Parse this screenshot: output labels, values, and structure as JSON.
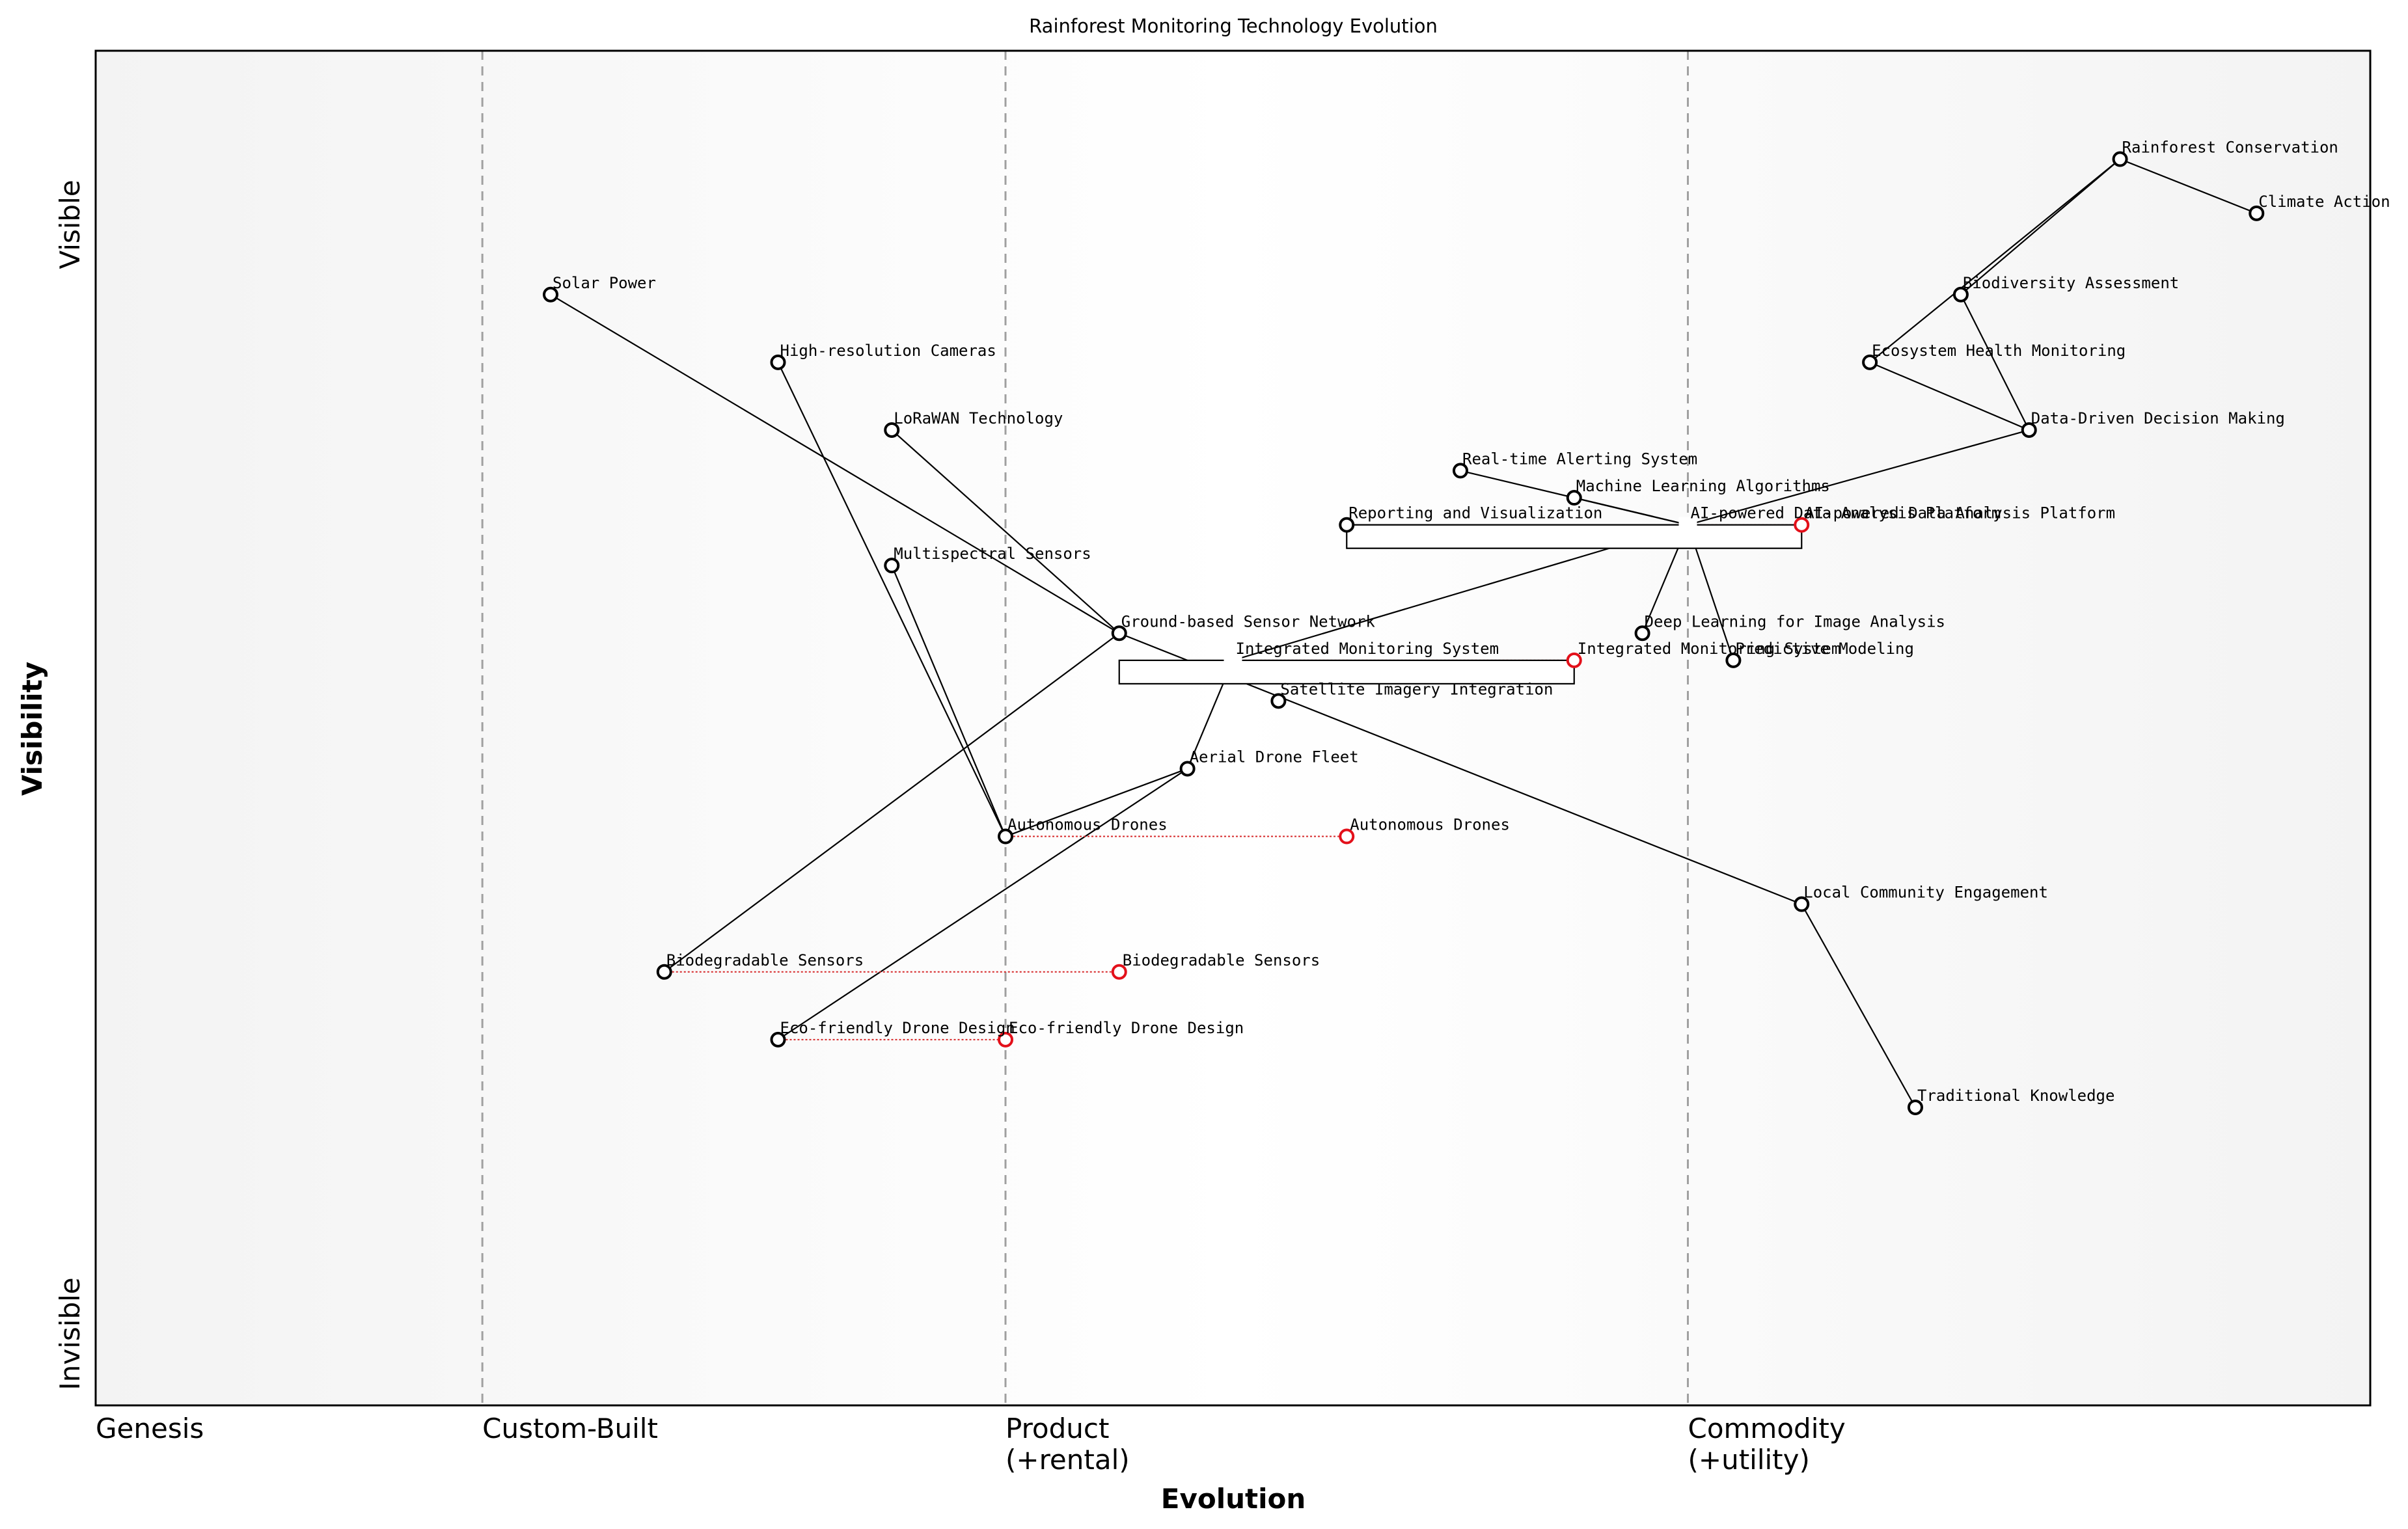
{
  "title": "Rainforest Monitoring Technology Evolution",
  "x_axis_title": "Evolution",
  "y_axis_title": "Visibility",
  "y_top_label": "Visible",
  "y_bottom_label": "Invisible",
  "stages": [
    {
      "lines": [
        "Genesis"
      ],
      "x": 0.0
    },
    {
      "lines": [
        "Custom-Built"
      ],
      "x": 0.17
    },
    {
      "lines": [
        "Product",
        "(+rental)"
      ],
      "x": 0.4
    },
    {
      "lines": [
        "Commodity",
        "(+utility)"
      ],
      "x": 0.7
    }
  ],
  "stage_separators": [
    0.17,
    0.4,
    0.7
  ],
  "components": [
    {
      "id": "rc",
      "label": "Rainforest Conservation",
      "evolution": 0.89,
      "visibility": 0.92
    },
    {
      "id": "ca",
      "label": "Climate Action",
      "evolution": 0.95,
      "visibility": 0.88
    },
    {
      "id": "ba",
      "label": "Biodiversity Assessment",
      "evolution": 0.82,
      "visibility": 0.82
    },
    {
      "id": "ehm",
      "label": "Ecosystem Health Monitoring",
      "evolution": 0.78,
      "visibility": 0.77
    },
    {
      "id": "ddm",
      "label": "Data-Driven Decision Making",
      "evolution": 0.85,
      "visibility": 0.72
    },
    {
      "id": "sp",
      "label": "Solar Power",
      "evolution": 0.2,
      "visibility": 0.82
    },
    {
      "id": "hrc",
      "label": "High-resolution Cameras",
      "evolution": 0.3,
      "visibility": 0.77
    },
    {
      "id": "lora",
      "label": "LoRaWAN Technology",
      "evolution": 0.35,
      "visibility": 0.72
    },
    {
      "id": "ras",
      "label": "Real-time Alerting System",
      "evolution": 0.6,
      "visibility": 0.69
    },
    {
      "id": "mla",
      "label": "Machine Learning Algorithms",
      "evolution": 0.65,
      "visibility": 0.67
    },
    {
      "id": "rv",
      "label": "Reporting and Visualization",
      "evolution": 0.55,
      "visibility": 0.65
    },
    {
      "id": "ms",
      "label": "Multispectral Sensors",
      "evolution": 0.35,
      "visibility": 0.62
    },
    {
      "id": "gsn",
      "label": "Ground-based Sensor Network",
      "evolution": 0.45,
      "visibility": 0.57
    },
    {
      "id": "dl",
      "label": "Deep Learning for Image Analysis",
      "evolution": 0.68,
      "visibility": 0.57
    },
    {
      "id": "pm",
      "label": "Predictive Modeling",
      "evolution": 0.72,
      "visibility": 0.55
    },
    {
      "id": "sii",
      "label": "Satellite Imagery Integration",
      "evolution": 0.52,
      "visibility": 0.52
    },
    {
      "id": "adf",
      "label": "Aerial Drone Fleet",
      "evolution": 0.48,
      "visibility": 0.47
    },
    {
      "id": "ad",
      "label": "Autonomous Drones",
      "evolution": 0.4,
      "visibility": 0.42
    },
    {
      "id": "lce",
      "label": "Local Community Engagement",
      "evolution": 0.75,
      "visibility": 0.37
    },
    {
      "id": "bs",
      "label": "Biodegradable Sensors",
      "evolution": 0.25,
      "visibility": 0.32
    },
    {
      "id": "edd",
      "label": "Eco-friendly Drone Design",
      "evolution": 0.3,
      "visibility": 0.27
    },
    {
      "id": "tk",
      "label": "Traditional Knowledge",
      "evolution": 0.8,
      "visibility": 0.22
    }
  ],
  "pipelines": [
    {
      "id": "aip",
      "label": "AI-powered Data Analysis Platform",
      "evolution": 0.7,
      "visibility": 0.65,
      "start": 0.55,
      "end": 0.75
    },
    {
      "id": "ims",
      "label": "Integrated Monitoring System",
      "evolution": 0.5,
      "visibility": 0.55,
      "start": 0.45,
      "end": 0.65
    }
  ],
  "evolving": [
    {
      "id": "aip_f",
      "label": "AI-powered Data Analysis Platform",
      "from": "aip",
      "evolution": 0.75,
      "visibility": 0.65
    },
    {
      "id": "ims_f",
      "label": "Integrated Monitoring System",
      "from": "ims",
      "evolution": 0.65,
      "visibility": 0.55
    },
    {
      "id": "ad_f",
      "label": "Autonomous Drones",
      "from": "ad",
      "evolution": 0.55,
      "visibility": 0.42
    },
    {
      "id": "bs_f",
      "label": "Biodegradable Sensors",
      "from": "bs",
      "evolution": 0.45,
      "visibility": 0.32
    },
    {
      "id": "edd_f",
      "label": "Eco-friendly Drone Design",
      "from": "edd",
      "evolution": 0.4,
      "visibility": 0.27
    }
  ],
  "links": [
    [
      "rc",
      "ca"
    ],
    [
      "rc",
      "ba"
    ],
    [
      "rc",
      "ehm"
    ],
    [
      "ba",
      "ddm"
    ],
    [
      "ehm",
      "ddm"
    ],
    [
      "ddm",
      "aip"
    ],
    [
      "ras",
      "aip"
    ],
    [
      "mla",
      "aip"
    ],
    [
      "rv",
      "aip"
    ],
    [
      "dl",
      "aip"
    ],
    [
      "pm",
      "aip"
    ],
    [
      "aip",
      "ims"
    ],
    [
      "sp",
      "gsn"
    ],
    [
      "lora",
      "gsn"
    ],
    [
      "gsn",
      "bs"
    ],
    [
      "hrc",
      "ad"
    ],
    [
      "ms",
      "ad"
    ],
    [
      "ad",
      "adf"
    ],
    [
      "adf",
      "edd"
    ],
    [
      "ims",
      "adf"
    ],
    [
      "gsn",
      "lce"
    ],
    [
      "lce",
      "tk"
    ]
  ]
}
